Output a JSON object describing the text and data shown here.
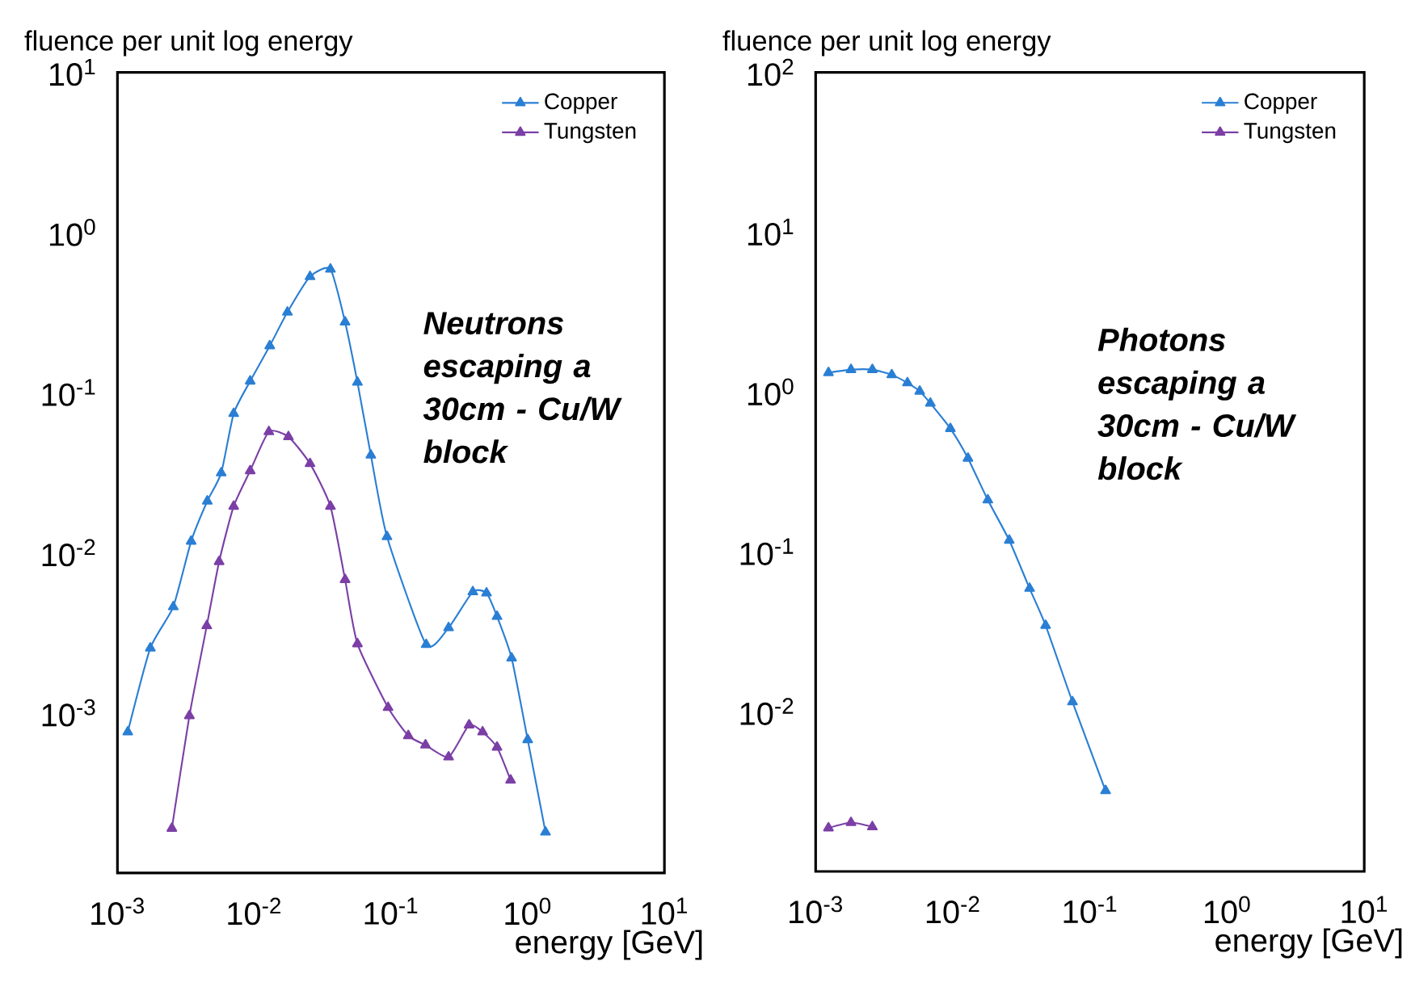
{
  "chart_data": [
    {
      "type": "line",
      "xlabel": "energy [GeV]",
      "ylabel": "fluence per unit log energy",
      "log": "xy",
      "legend": "top right",
      "marker": "triangle",
      "line_style": "solid",
      "xlim": [
        0.001,
        10
      ],
      "ylim": [
        0.0001,
        10
      ],
      "xticks": [
        {
          "value": 0.001,
          "label": "10$^{-3}$"
        },
        {
          "value": 0.01,
          "label": "10$^{-2}$"
        },
        {
          "value": 0.1,
          "label": "10$^{-1}$"
        },
        {
          "value": 1,
          "label": "10$^{0}$"
        },
        {
          "value": 10,
          "label": "10$^{1}$"
        }
      ],
      "yticks": [
        {
          "value": 0.0001,
          "label": null
        },
        {
          "value": 0.001,
          "label": "10$^{-3}$"
        },
        {
          "value": 0.01,
          "label": "10$^{-2}$"
        },
        {
          "value": 0.1,
          "label": "10$^{-1}$"
        },
        {
          "value": 1,
          "label": "10$^{0}$"
        },
        {
          "value": 10,
          "label": "10$^{1}$"
        }
      ],
      "annotations": [
        "Neutrons escaping a 30cm - Cu/W block"
      ],
      "series": [
        {
          "name": "Copper",
          "color": "#2a7fd4",
          "x": [
            0.00119,
            0.00174,
            0.00256,
            0.00346,
            0.00454,
            0.00574,
            0.00708,
            0.00935,
            0.013,
            0.0175,
            0.0256,
            0.0361,
            0.0462,
            0.0569,
            0.0713,
            0.0936,
            0.181,
            0.264,
            0.397,
            0.5,
            0.597,
            0.763,
            1.0,
            1.35
          ],
          "values": [
            0.00076,
            0.00254,
            0.0046,
            0.0118,
            0.021,
            0.0315,
            0.074,
            0.118,
            0.196,
            0.318,
            0.53,
            0.59,
            0.276,
            0.116,
            0.0407,
            0.0126,
            0.00267,
            0.0034,
            0.0057,
            0.0056,
            0.004,
            0.0022,
            0.00068,
            0.00018
          ]
        },
        {
          "name": "Tungsten",
          "color": "#7b3fa6",
          "x": [
            0.0025,
            0.00336,
            0.0045,
            0.00554,
            0.00708,
            0.00935,
            0.0128,
            0.0178,
            0.0256,
            0.0361,
            0.0462,
            0.0569,
            0.0953,
            0.134,
            0.179,
            0.264,
            0.373,
            0.468,
            0.597,
            0.75
          ],
          "values": [
            0.00019,
            0.00096,
            0.0035,
            0.0088,
            0.0195,
            0.0325,
            0.057,
            0.053,
            0.036,
            0.0195,
            0.0068,
            0.0027,
            0.00108,
            0.00072,
            0.00063,
            0.00053,
            0.00084,
            0.00076,
            0.00061,
            0.00038
          ]
        }
      ]
    },
    {
      "type": "line",
      "xlabel": "energy [GeV]",
      "ylabel": "fluence per unit log energy",
      "log": "xy",
      "legend": "top right",
      "marker": "triangle",
      "line_style": "solid",
      "xlim": [
        0.001,
        10
      ],
      "ylim": [
        0.001,
        100
      ],
      "xticks": [
        {
          "value": 0.001,
          "label": "10$^{-3}$"
        },
        {
          "value": 0.01,
          "label": "10$^{-2}$"
        },
        {
          "value": 0.1,
          "label": "10$^{-1}$"
        },
        {
          "value": 1,
          "label": "10$^{0}$"
        },
        {
          "value": 10,
          "label": "10$^{1}$"
        }
      ],
      "yticks": [
        {
          "value": 0.001,
          "label": null
        },
        {
          "value": 0.01,
          "label": "10$^{-2}$"
        },
        {
          "value": 0.1,
          "label": "10$^{-1}$"
        },
        {
          "value": 1,
          "label": "10$^{0}$"
        },
        {
          "value": 10,
          "label": "10$^{1}$"
        },
        {
          "value": 100,
          "label": "10$^{2}$"
        }
      ],
      "annotations": [
        "Photons escaping a 30cm - Cu/W block"
      ],
      "series": [
        {
          "name": "Copper",
          "color": "#2a7fd4",
          "x": [
            0.00124,
            0.00181,
            0.00259,
            0.00359,
            0.00467,
            0.00574,
            0.00686,
            0.0096,
            0.0129,
            0.018,
            0.0258,
            0.0363,
            0.0475,
            0.0746,
            0.13
          ],
          "values": [
            1.32,
            1.38,
            1.38,
            1.28,
            1.14,
            1.01,
            0.85,
            0.59,
            0.385,
            0.211,
            0.118,
            0.059,
            0.0346,
            0.0115,
            0.0032
          ]
        },
        {
          "name": "Tungsten",
          "color": "#7b3fa6",
          "x": [
            0.00124,
            0.00181,
            0.00259
          ],
          "values": [
            0.00187,
            0.00202,
            0.0019
          ]
        }
      ]
    }
  ]
}
